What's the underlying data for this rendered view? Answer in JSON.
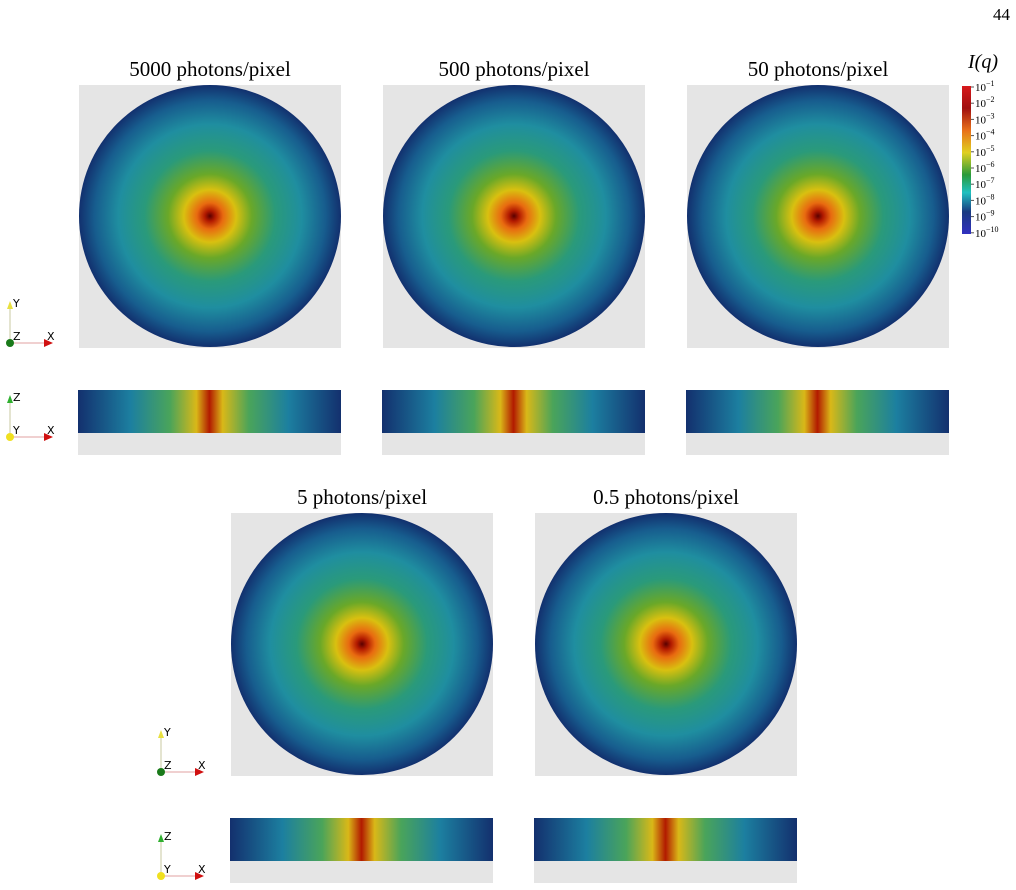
{
  "page_number": "44",
  "panels": [
    {
      "title": "5000 photons/pixel"
    },
    {
      "title": "500 photons/pixel"
    },
    {
      "title": "50 photons/pixel"
    },
    {
      "title": "5 photons/pixel"
    },
    {
      "title": "0.5 photons/pixel"
    }
  ],
  "colorbar": {
    "label": "I(q)",
    "ticks": [
      {
        "base": "10",
        "exponent": "−1"
      },
      {
        "base": "10",
        "exponent": "−2"
      },
      {
        "base": "10",
        "exponent": "−3"
      },
      {
        "base": "10",
        "exponent": "−4"
      },
      {
        "base": "10",
        "exponent": "−5"
      },
      {
        "base": "10",
        "exponent": "−6"
      },
      {
        "base": "10",
        "exponent": "−7"
      },
      {
        "base": "10",
        "exponent": "−8"
      },
      {
        "base": "10",
        "exponent": "−9"
      },
      {
        "base": "10",
        "exponent": "−10"
      }
    ]
  },
  "triads": [
    {
      "labels": [
        "Y",
        "Z",
        "X"
      ]
    },
    {
      "labels": [
        "Z",
        "Y",
        "X"
      ]
    },
    {
      "labels": [
        "Y",
        "Z",
        "X"
      ]
    },
    {
      "labels": [
        "Z",
        "Y",
        "X"
      ]
    }
  ]
}
